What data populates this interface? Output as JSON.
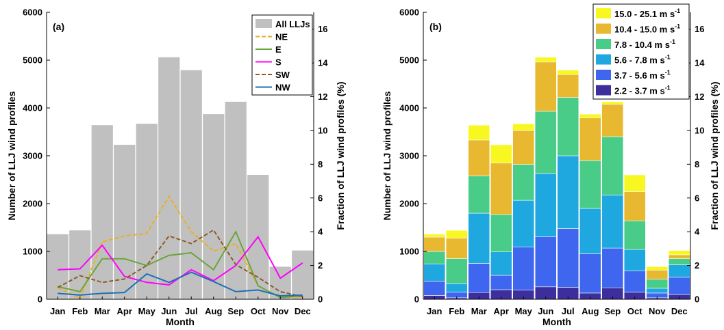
{
  "chart_data": [
    {
      "type": "bar",
      "panel_label": "(a)",
      "categories": [
        "Jan",
        "Feb",
        "Mar",
        "Apr",
        "May",
        "Jun",
        "Jul",
        "Aug",
        "Sep",
        "Oct",
        "Nov",
        "Dec"
      ],
      "xlabel": "Month",
      "ylabel": "Number of LLJ wind profiles",
      "y2label": "Fraction of LLJ wind profiles (%)",
      "ylim": [
        0,
        6000
      ],
      "yticks": [
        0,
        1000,
        2000,
        3000,
        4000,
        5000,
        6000
      ],
      "y2lim": [
        0,
        17
      ],
      "y2ticks": [
        0,
        2,
        4,
        6,
        8,
        10,
        12,
        14,
        16
      ],
      "legend_position": "top-right",
      "bars": {
        "name": "All LLJs",
        "color": "#c0c0c0",
        "values": [
          1360,
          1440,
          3640,
          3230,
          3670,
          5060,
          4790,
          3870,
          4130,
          2600,
          680,
          1020
        ]
      },
      "lines": [
        {
          "name": "NE",
          "color": "#e8b020",
          "dash": "6,3",
          "axis": "right",
          "values": [
            0.7,
            0.05,
            3.4,
            3.75,
            3.9,
            6.1,
            4.0,
            2.85,
            3.3,
            0.8,
            0.1,
            0.15
          ]
        },
        {
          "name": "E",
          "color": "#6aa53a",
          "dash": "",
          "axis": "right",
          "values": [
            0.75,
            0.45,
            2.4,
            2.4,
            2.0,
            2.6,
            2.75,
            1.75,
            4.0,
            0.8,
            0.1,
            0.2
          ]
        },
        {
          "name": "S",
          "color": "#ff00ff",
          "dash": "",
          "axis": "right",
          "values": [
            1.75,
            1.8,
            3.2,
            1.35,
            1.0,
            0.85,
            1.75,
            1.1,
            2.0,
            3.7,
            1.25,
            2.15
          ]
        },
        {
          "name": "SW",
          "color": "#8b5a2b",
          "dash": "6,3",
          "axis": "right",
          "values": [
            0.7,
            1.4,
            1.0,
            1.2,
            2.0,
            3.75,
            3.3,
            4.1,
            2.05,
            1.3,
            0.45,
            0.15
          ]
        },
        {
          "name": "NW",
          "color": "#1f6fb5",
          "dash": "",
          "axis": "right",
          "values": [
            0.35,
            0.25,
            0.35,
            0.4,
            1.5,
            1.0,
            1.6,
            1.05,
            0.45,
            0.55,
            0.2,
            0.25
          ]
        }
      ]
    },
    {
      "type": "bar",
      "panel_label": "(b)",
      "stacked": true,
      "categories": [
        "Jan",
        "Feb",
        "Mar",
        "Apr",
        "May",
        "Jun",
        "Jul",
        "Aug",
        "Sep",
        "Oct",
        "Nov",
        "Dec"
      ],
      "xlabel": "Month",
      "ylabel": "Number of LLJ wind profiles",
      "y2label": "Fraction of LLJ wind profiles (%)",
      "ylim": [
        0,
        6000
      ],
      "yticks": [
        0,
        1000,
        2000,
        3000,
        4000,
        5000,
        6000
      ],
      "y2lim": [
        0,
        17
      ],
      "y2ticks": [
        0,
        2,
        4,
        6,
        8,
        10,
        12,
        14,
        16
      ],
      "legend_position": "top-right",
      "series": [
        {
          "name": "2.2 - 3.7 m s",
          "sup": "-1",
          "color": "#3d2e9e",
          "values": [
            80,
            30,
            140,
            200,
            190,
            260,
            250,
            130,
            240,
            150,
            30,
            100
          ]
        },
        {
          "name": "3.7 - 5.6 m s",
          "sup": "-1",
          "color": "#3f66ee",
          "values": [
            300,
            120,
            610,
            300,
            900,
            1050,
            1230,
            820,
            830,
            440,
            100,
            360
          ]
        },
        {
          "name": "5.6 - 7.8 m s",
          "sup": "-1",
          "color": "#1fa7df",
          "values": [
            360,
            180,
            1050,
            490,
            980,
            1320,
            1520,
            950,
            1110,
            450,
            100,
            260
          ]
        },
        {
          "name": "7.8 - 10.4 m s",
          "sup": "-1",
          "color": "#48cc88",
          "values": [
            260,
            520,
            780,
            780,
            750,
            1300,
            1220,
            1000,
            1220,
            600,
            190,
            130
          ]
        },
        {
          "name": "10.4 - 15.0 m s",
          "sup": "-1",
          "color": "#e8b830",
          "values": [
            300,
            430,
            750,
            1080,
            710,
            1030,
            480,
            890,
            680,
            610,
            190,
            80
          ]
        },
        {
          "name": "15.0 - 25.1 m s",
          "sup": "-1",
          "color": "#f8f820",
          "values": [
            60,
            160,
            310,
            380,
            140,
            100,
            90,
            80,
            50,
            350,
            70,
            90
          ]
        }
      ]
    }
  ]
}
